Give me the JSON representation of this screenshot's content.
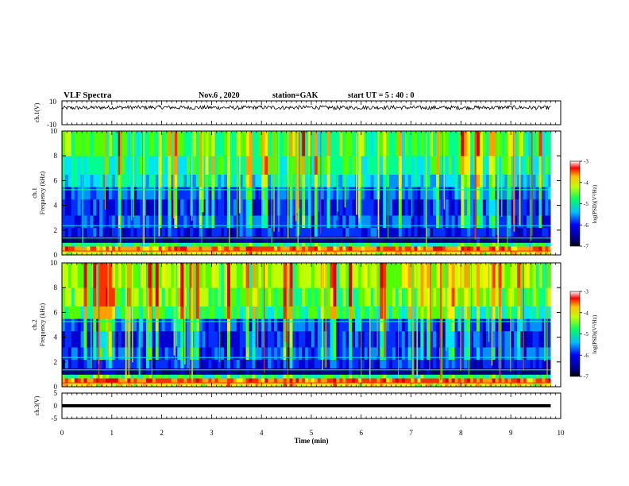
{
  "header": {
    "title": "VLF Spectra",
    "date": "Nov.6 , 2020",
    "station": "station=GAK",
    "start": "start UT = 5 : 40 : 0"
  },
  "chart_data": [
    {
      "type": "line",
      "id": "ch1_waveform",
      "ylabel": "ch.1(V)",
      "ylim": [
        -10,
        10
      ],
      "yticks": [
        "10",
        "-10"
      ],
      "xlim": [
        0,
        10
      ],
      "x": [
        0.0,
        0.5,
        1.0,
        1.5,
        2.0,
        2.5,
        3.0,
        3.5,
        4.0,
        4.5,
        5.0,
        5.5,
        6.0,
        6.5,
        7.0,
        7.5,
        8.0,
        8.5,
        9.0,
        9.5,
        9.8
      ],
      "y": [
        4.0,
        4.2,
        4.5,
        4.4,
        4.6,
        4.3,
        4.4,
        4.2,
        4.5,
        4.3,
        4.6,
        4.2,
        4.4,
        4.5,
        4.3,
        4.2,
        4.4,
        4.3,
        4.5,
        4.2,
        4.3
      ]
    },
    {
      "type": "heatmap",
      "id": "ch1_spectrogram",
      "ylabel_top": "ch.1",
      "ylabel": "Frequency (kHz)",
      "ylim": [
        0,
        10
      ],
      "yticks": [
        "0",
        "2",
        "4",
        "6",
        "8",
        "10"
      ],
      "xlim": [
        0,
        10
      ],
      "colorbar": {
        "label": "log(PSD)(V²/Hz)",
        "min": -7,
        "max": -3,
        "ticks": [
          "-3",
          "-4",
          "-5",
          "-6",
          "-7"
        ]
      }
    },
    {
      "type": "heatmap",
      "id": "ch2_spectrogram",
      "ylabel_top": "ch.2",
      "ylabel": "Frequency (kHz)",
      "ylim": [
        0,
        10
      ],
      "yticks": [
        "0",
        "2",
        "4",
        "6",
        "8",
        "10"
      ],
      "xlim": [
        0,
        10
      ],
      "colorbar": {
        "label": "log(PSD)(V²/Hz)",
        "min": -7,
        "max": -3,
        "ticks": [
          "-3",
          "-4",
          "-5",
          "-6",
          "-7"
        ]
      }
    },
    {
      "type": "line",
      "id": "ch3_waveform",
      "ylabel": "ch.3(V)",
      "ylim": [
        -5,
        5
      ],
      "yticks": [
        "5",
        "0",
        "-5"
      ],
      "xlim": [
        0,
        10
      ],
      "x": [
        0,
        9.8
      ],
      "y": [
        0,
        0
      ]
    }
  ],
  "xaxis": {
    "label": "Time (min)",
    "ticks": [
      "0",
      "1",
      "2",
      "3",
      "4",
      "5",
      "6",
      "7",
      "8",
      "9",
      "10"
    ]
  },
  "colors": {
    "spectrum": [
      "#000080",
      "#0000ff",
      "#0080ff",
      "#00ffff",
      "#00ff80",
      "#80ff00",
      "#ffff00",
      "#ff8000",
      "#ff0000"
    ]
  }
}
